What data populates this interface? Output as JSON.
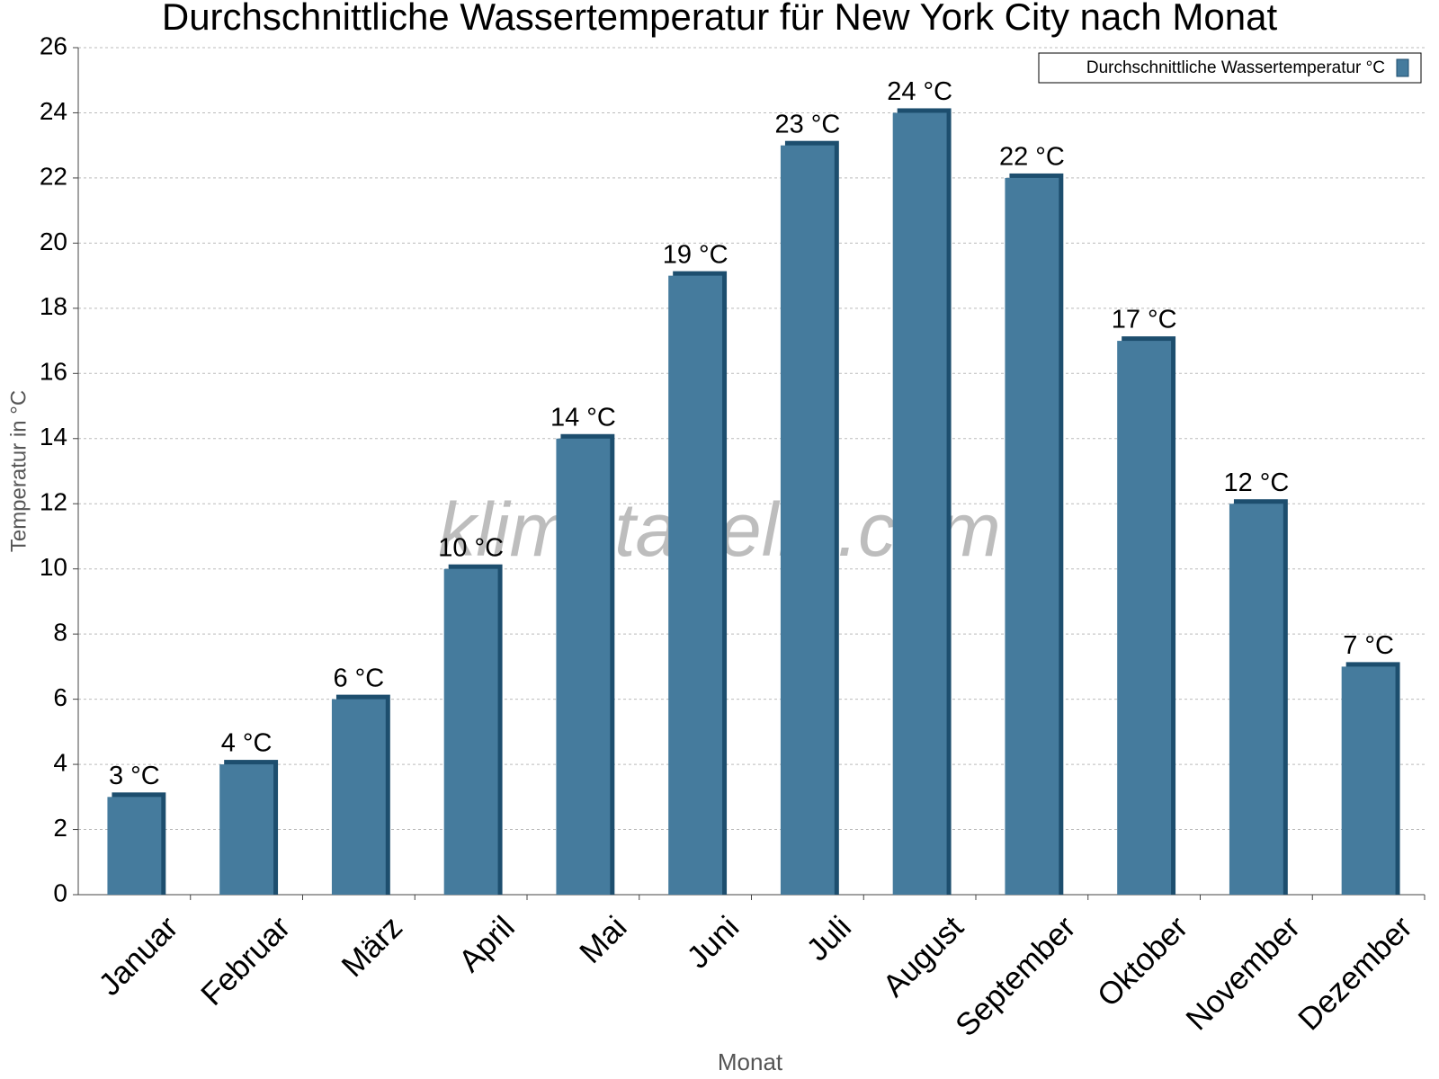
{
  "chart_data": {
    "type": "bar",
    "title": "Durchschnittliche Wassertemperatur für New York City nach Monat",
    "x_label": "Monat",
    "y_label": "Temperatur in °C",
    "watermark": "klimatabelle.com",
    "categories": [
      "Januar",
      "Februar",
      "März",
      "April",
      "Mai",
      "Juni",
      "Juli",
      "August",
      "September",
      "Oktober",
      "November",
      "Dezember"
    ],
    "series": [
      {
        "name": "Durchschnittliche Wassertemperatur °C",
        "color": "#457b9d",
        "values": [
          3,
          4,
          6,
          10,
          14,
          19,
          23,
          24,
          22,
          17,
          12,
          7
        ],
        "value_labels": [
          "3 °C",
          "4 °C",
          "6 °C",
          "10 °C",
          "14 °C",
          "19 °C",
          "23 °C",
          "24 °C",
          "22 °C",
          "17 °C",
          "12 °C",
          "7 °C"
        ]
      }
    ],
    "ylim": [
      0,
      26
    ],
    "yticks": [
      0,
      2,
      4,
      6,
      8,
      10,
      12,
      14,
      16,
      18,
      20,
      22,
      24,
      26
    ],
    "grid": true,
    "legend": "top-right"
  }
}
